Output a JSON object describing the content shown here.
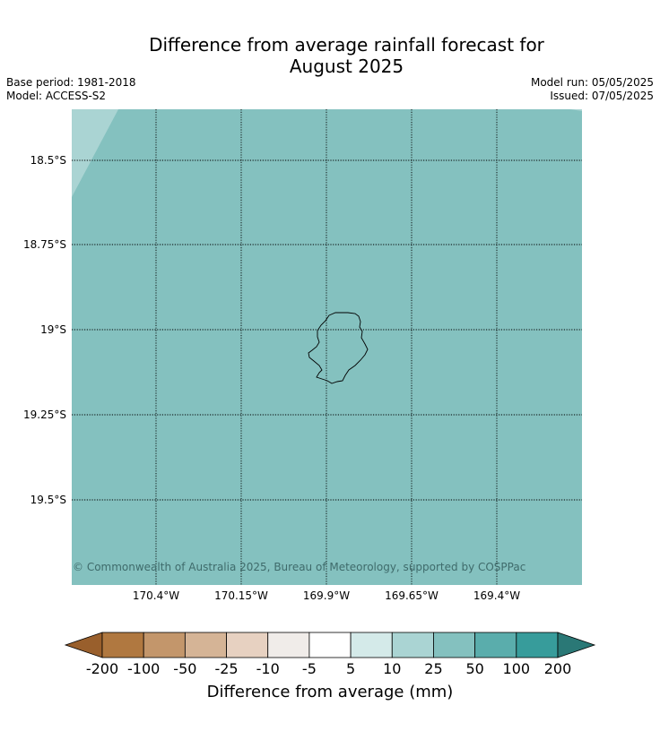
{
  "title_line1": "Difference from average rainfall forecast for",
  "title_line2": "August 2025",
  "meta": {
    "base_period": "Base period: 1981-2018",
    "model": "Model: ACCESS-S2",
    "model_run": "Model run: 05/05/2025",
    "issued": "Issued: 07/05/2025"
  },
  "map": {
    "latitude_labels": [
      "18.5°S",
      "18.75°S",
      "19°S",
      "19.25°S",
      "19.5°S"
    ],
    "longitude_labels": [
      "170.4°W",
      "170.15°W",
      "169.9°W",
      "169.65°W",
      "169.4°W"
    ],
    "fill_color": "#84c1bf",
    "corner_fill_color": "#aad4d3",
    "copyright": "© Commonwealth of Australia 2025, Bureau of Meteorology, supported by COSPPac"
  },
  "legend": {
    "label": "Difference from average (mm)",
    "ticks": [
      "-200",
      "-100",
      "-50",
      "-25",
      "-10",
      "-5",
      "5",
      "10",
      "25",
      "50",
      "100",
      "200"
    ],
    "colors": [
      "#995f2c",
      "#b07840",
      "#c3966b",
      "#d5b496",
      "#e7d1c1",
      "#f0ece9",
      "#ffffff",
      "#d4eae9",
      "#aad4d3",
      "#84c1bf",
      "#5aadac",
      "#379c9b",
      "#2a7876"
    ]
  }
}
